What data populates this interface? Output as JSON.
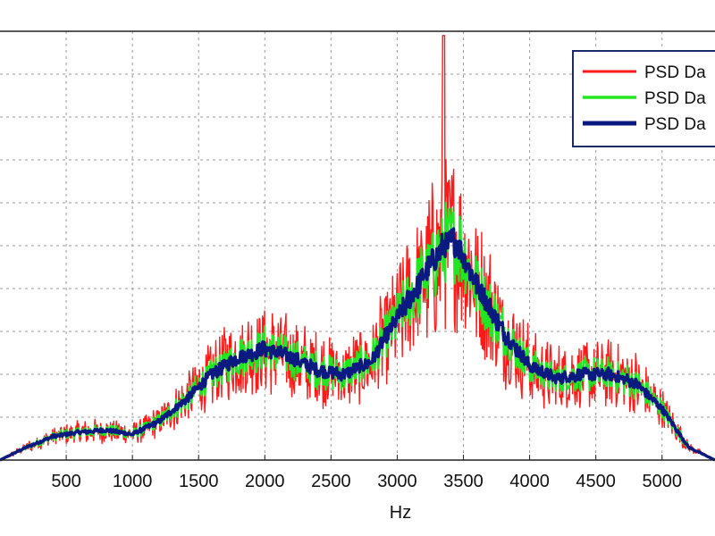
{
  "chart_data": {
    "type": "line",
    "title": "",
    "xlabel": "Hz",
    "ylabel": "",
    "xlim": [
      0,
      5400
    ],
    "ylim": [
      0,
      1.0
    ],
    "x_ticks": [
      500,
      1000,
      1500,
      2000,
      2500,
      3000,
      3500,
      4000,
      4500,
      5000
    ],
    "x_tick_labels": [
      "500",
      "1000",
      "1500",
      "2000",
      "2500",
      "3000",
      "3500",
      "4000",
      "4500",
      "5000"
    ],
    "y_gridlines": [
      0.1,
      0.2,
      0.3,
      0.4,
      0.5,
      0.6,
      0.7,
      0.8,
      0.9
    ],
    "grid": true,
    "legend_position": "top-right",
    "envelope": {
      "x": [
        0,
        200,
        400,
        600,
        800,
        1000,
        1200,
        1400,
        1600,
        1800,
        2000,
        2200,
        2400,
        2600,
        2800,
        3000,
        3200,
        3350,
        3450,
        3600,
        3800,
        4000,
        4200,
        4400,
        4600,
        4800,
        5000,
        5200,
        5400
      ],
      "y": [
        0.0,
        0.03,
        0.055,
        0.065,
        0.07,
        0.06,
        0.09,
        0.14,
        0.2,
        0.24,
        0.26,
        0.24,
        0.21,
        0.2,
        0.23,
        0.33,
        0.43,
        0.5,
        0.51,
        0.41,
        0.3,
        0.22,
        0.19,
        0.2,
        0.2,
        0.18,
        0.12,
        0.03,
        0.0
      ]
    },
    "series": [
      {
        "name": "PSD Da",
        "color": "#ff1a1a",
        "spread": 0.45,
        "line_width": 1.4
      },
      {
        "name": "PSD Da",
        "color": "#22e622",
        "spread": 0.22,
        "line_width": 2.0
      },
      {
        "name": "PSD Da",
        "color": "#0a1a80",
        "spread": 0.08,
        "line_width": 3.4
      }
    ]
  }
}
